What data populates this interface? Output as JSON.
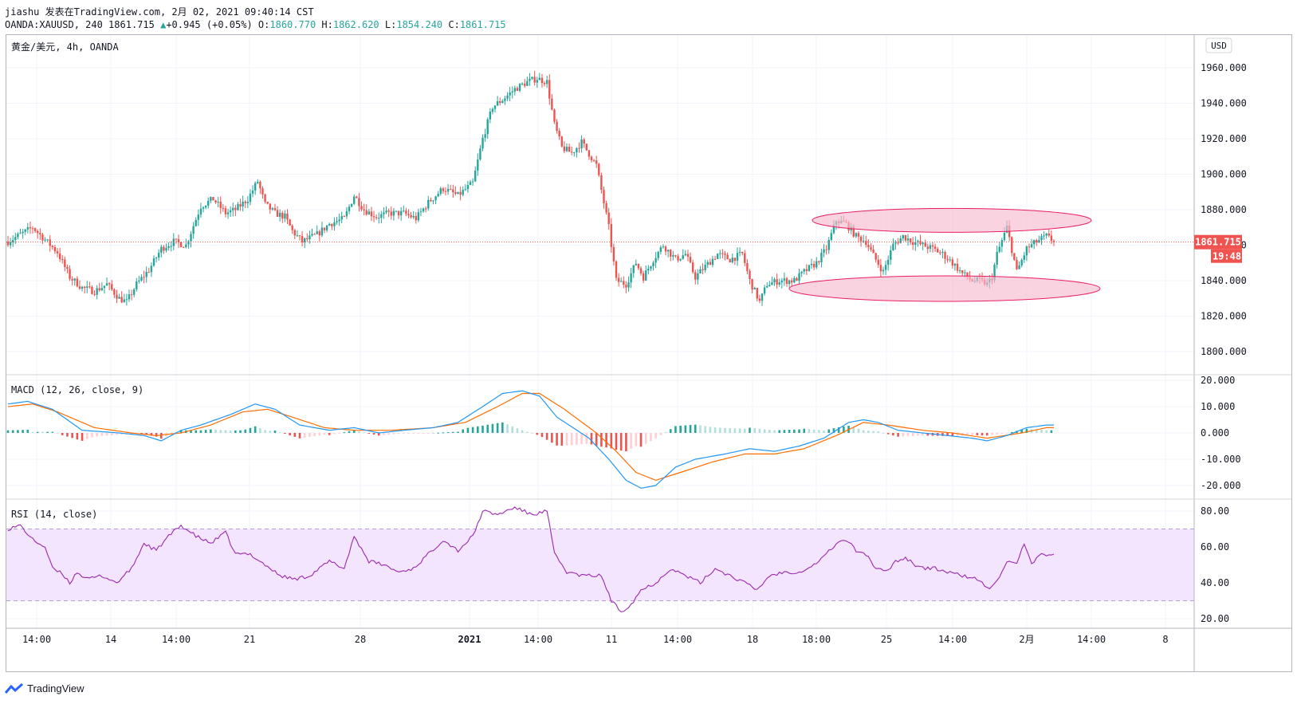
{
  "header": {
    "line1": "jiashu 发表在TradingView.com, 2月 02, 2021 09:40:14 CST",
    "symbol": "OANDA:XAUUSD, 240 1861.715",
    "change": "+0.945 (+0.05%)",
    "o_label": "O:",
    "o_val": "1860.770",
    "h_label": "H:",
    "h_val": "1862.620",
    "l_label": "L:",
    "l_val": "1854.240",
    "c_label": "C:",
    "c_val": "1861.715"
  },
  "main_pane": {
    "title": "黄金/美元, 4h, OANDA",
    "currency": "USD",
    "last_price": "1861.715",
    "countdown": "19:48"
  },
  "macd_pane": {
    "title": "MACD (12, 26, close, 9)"
  },
  "rsi_pane": {
    "title": "RSI (14, close)"
  },
  "brand": {
    "name": "TradingView"
  },
  "colors": {
    "up": "#26a69a",
    "down": "#ef5350",
    "rsi": "#9c27b0",
    "rsi_band": "#f3e5fd",
    "macd_line": "#2196f3",
    "signal_line": "#ff6d00",
    "ellipse_fill": "#f8bbd0",
    "ellipse_stroke": "#e91e63"
  },
  "chart_data": [
    {
      "type": "candlestick",
      "y_axis_ticks": [
        "1960.000",
        "1940.000",
        "1920.000",
        "1900.000",
        "1880.000",
        "1860.000",
        "1840.000",
        "1820.000",
        "1800.000"
      ],
      "ylim": [
        1795,
        1962
      ],
      "x_axis_ticks": [
        "14:00",
        "14",
        "14:00",
        "21",
        "28",
        "2021",
        "14:00",
        "11",
        "14:00",
        "18",
        "18:00",
        "25",
        "14:00",
        "2月",
        "14:00",
        "8"
      ],
      "last_close": 1861.715,
      "price_path": [
        [
          0,
          1862
        ],
        [
          10,
          1870
        ],
        [
          20,
          1856
        ],
        [
          25,
          1842
        ],
        [
          30,
          1836
        ],
        [
          35,
          1834
        ],
        [
          40,
          1838
        ],
        [
          45,
          1830
        ],
        [
          48,
          1828
        ],
        [
          52,
          1838
        ],
        [
          57,
          1846
        ],
        [
          62,
          1858
        ],
        [
          67,
          1862
        ],
        [
          72,
          1860
        ],
        [
          78,
          1882
        ],
        [
          83,
          1886
        ],
        [
          88,
          1878
        ],
        [
          92,
          1880
        ],
        [
          97,
          1886
        ],
        [
          101,
          1896
        ],
        [
          104,
          1883
        ],
        [
          108,
          1878
        ],
        [
          112,
          1876
        ],
        [
          115,
          1868
        ],
        [
          119,
          1862
        ],
        [
          125,
          1866
        ],
        [
          130,
          1872
        ],
        [
          136,
          1875
        ],
        [
          140,
          1888
        ],
        [
          144,
          1880
        ],
        [
          149,
          1876
        ],
        [
          154,
          1878
        ],
        [
          160,
          1878
        ],
        [
          165,
          1875
        ],
        [
          170,
          1884
        ],
        [
          176,
          1892
        ],
        [
          182,
          1888
        ],
        [
          188,
          1895
        ],
        [
          192,
          1920
        ],
        [
          196,
          1938
        ],
        [
          200,
          1942
        ],
        [
          205,
          1948
        ],
        [
          210,
          1952
        ],
        [
          214,
          1954
        ],
        [
          218,
          1952
        ],
        [
          221,
          1928
        ],
        [
          224,
          1915
        ],
        [
          228,
          1912
        ],
        [
          232,
          1918
        ],
        [
          238,
          1905
        ],
        [
          243,
          1870
        ],
        [
          246,
          1840
        ],
        [
          250,
          1838
        ],
        [
          254,
          1850
        ],
        [
          257,
          1842
        ],
        [
          261,
          1852
        ],
        [
          265,
          1860
        ],
        [
          270,
          1852
        ],
        [
          274,
          1855
        ],
        [
          278,
          1842
        ],
        [
          282,
          1848
        ],
        [
          287,
          1855
        ],
        [
          292,
          1852
        ],
        [
          297,
          1855
        ],
        [
          300,
          1840
        ],
        [
          304,
          1828
        ],
        [
          307,
          1838
        ],
        [
          312,
          1840
        ],
        [
          318,
          1840
        ],
        [
          322,
          1845
        ],
        [
          327,
          1850
        ],
        [
          331,
          1858
        ],
        [
          335,
          1874
        ],
        [
          339,
          1872
        ],
        [
          343,
          1865
        ],
        [
          347,
          1862
        ],
        [
          350,
          1854
        ],
        [
          354,
          1845
        ],
        [
          358,
          1860
        ],
        [
          362,
          1865
        ],
        [
          366,
          1862
        ],
        [
          370,
          1860
        ],
        [
          374,
          1858
        ],
        [
          378,
          1855
        ],
        [
          382,
          1850
        ],
        [
          386,
          1844
        ],
        [
          390,
          1840
        ],
        [
          393,
          1840
        ],
        [
          396,
          1838
        ],
        [
          398,
          1842
        ],
        [
          400,
          1855
        ],
        [
          404,
          1870
        ],
        [
          408,
          1845
        ],
        [
          412,
          1858
        ],
        [
          416,
          1862
        ],
        [
          420,
          1865
        ],
        [
          423,
          1862
        ]
      ]
    },
    {
      "type": "line",
      "name": "MACD",
      "y_axis_ticks": [
        "20.000",
        "10.000",
        "0.000",
        "-10.000",
        "-20.000"
      ],
      "ylim": [
        -26,
        25
      ],
      "macd": [
        [
          0,
          11
        ],
        [
          8,
          12
        ],
        [
          18,
          9
        ],
        [
          30,
          1
        ],
        [
          45,
          0
        ],
        [
          55,
          -1
        ],
        [
          62,
          -3
        ],
        [
          70,
          1
        ],
        [
          78,
          3
        ],
        [
          90,
          7
        ],
        [
          100,
          11
        ],
        [
          108,
          9
        ],
        [
          118,
          3
        ],
        [
          130,
          1
        ],
        [
          140,
          2
        ],
        [
          150,
          0
        ],
        [
          160,
          1
        ],
        [
          172,
          2
        ],
        [
          182,
          4
        ],
        [
          192,
          10
        ],
        [
          200,
          15
        ],
        [
          208,
          16
        ],
        [
          215,
          14
        ],
        [
          222,
          6
        ],
        [
          235,
          -2
        ],
        [
          243,
          -10
        ],
        [
          250,
          -18
        ],
        [
          256,
          -21
        ],
        [
          262,
          -20
        ],
        [
          270,
          -13
        ],
        [
          278,
          -10
        ],
        [
          290,
          -8
        ],
        [
          300,
          -6
        ],
        [
          310,
          -7
        ],
        [
          320,
          -5
        ],
        [
          330,
          -2
        ],
        [
          340,
          4
        ],
        [
          346,
          5
        ],
        [
          352,
          4
        ],
        [
          360,
          1
        ],
        [
          370,
          0
        ],
        [
          380,
          -1
        ],
        [
          390,
          -2
        ],
        [
          396,
          -3
        ],
        [
          404,
          -1
        ],
        [
          412,
          2
        ],
        [
          420,
          3
        ]
      ],
      "signal": [
        [
          0,
          10
        ],
        [
          10,
          11
        ],
        [
          20,
          8
        ],
        [
          35,
          2
        ],
        [
          50,
          0
        ],
        [
          60,
          -1
        ],
        [
          70,
          0
        ],
        [
          82,
          3
        ],
        [
          95,
          8
        ],
        [
          105,
          9
        ],
        [
          115,
          6
        ],
        [
          128,
          2
        ],
        [
          140,
          1
        ],
        [
          155,
          1
        ],
        [
          172,
          2
        ],
        [
          185,
          4
        ],
        [
          198,
          10
        ],
        [
          208,
          15
        ],
        [
          215,
          15
        ],
        [
          225,
          9
        ],
        [
          238,
          0
        ],
        [
          246,
          -7
        ],
        [
          254,
          -15
        ],
        [
          262,
          -18
        ],
        [
          272,
          -15
        ],
        [
          285,
          -11
        ],
        [
          298,
          -8
        ],
        [
          310,
          -8
        ],
        [
          322,
          -6
        ],
        [
          335,
          -1
        ],
        [
          346,
          4
        ],
        [
          356,
          3
        ],
        [
          370,
          1
        ],
        [
          382,
          0
        ],
        [
          396,
          -2
        ],
        [
          410,
          0
        ],
        [
          420,
          2
        ]
      ]
    },
    {
      "type": "line",
      "name": "RSI",
      "y_axis_ticks": [
        "80.00",
        "60.00",
        "40.00",
        "20.00"
      ],
      "ylim": [
        17,
        86
      ],
      "band": [
        30,
        70
      ],
      "rsi": [
        [
          0,
          70
        ],
        [
          5,
          72
        ],
        [
          10,
          64
        ],
        [
          15,
          60
        ],
        [
          18,
          48
        ],
        [
          22,
          45
        ],
        [
          25,
          40
        ],
        [
          28,
          46
        ],
        [
          32,
          42
        ],
        [
          38,
          44
        ],
        [
          44,
          40
        ],
        [
          50,
          48
        ],
        [
          55,
          62
        ],
        [
          60,
          58
        ],
        [
          65,
          66
        ],
        [
          70,
          72
        ],
        [
          76,
          66
        ],
        [
          82,
          62
        ],
        [
          88,
          68
        ],
        [
          92,
          56
        ],
        [
          98,
          56
        ],
        [
          104,
          50
        ],
        [
          110,
          44
        ],
        [
          116,
          42
        ],
        [
          122,
          44
        ],
        [
          130,
          52
        ],
        [
          136,
          48
        ],
        [
          140,
          66
        ],
        [
          146,
          52
        ],
        [
          152,
          50
        ],
        [
          158,
          46
        ],
        [
          164,
          48
        ],
        [
          170,
          56
        ],
        [
          176,
          64
        ],
        [
          182,
          58
        ],
        [
          188,
          66
        ],
        [
          192,
          80
        ],
        [
          198,
          78
        ],
        [
          205,
          82
        ],
        [
          212,
          78
        ],
        [
          218,
          80
        ],
        [
          221,
          56
        ],
        [
          226,
          46
        ],
        [
          232,
          44
        ],
        [
          240,
          44
        ],
        [
          244,
          30
        ],
        [
          248,
          24
        ],
        [
          252,
          28
        ],
        [
          256,
          36
        ],
        [
          262,
          40
        ],
        [
          268,
          48
        ],
        [
          274,
          44
        ],
        [
          280,
          40
        ],
        [
          286,
          48
        ],
        [
          292,
          44
        ],
        [
          298,
          40
        ],
        [
          303,
          36
        ],
        [
          308,
          44
        ],
        [
          314,
          46
        ],
        [
          320,
          46
        ],
        [
          326,
          50
        ],
        [
          331,
          56
        ],
        [
          335,
          62
        ],
        [
          339,
          64
        ],
        [
          343,
          58
        ],
        [
          347,
          56
        ],
        [
          351,
          48
        ],
        [
          355,
          46
        ],
        [
          359,
          52
        ],
        [
          363,
          54
        ],
        [
          367,
          50
        ],
        [
          371,
          48
        ],
        [
          375,
          48
        ],
        [
          380,
          46
        ],
        [
          386,
          44
        ],
        [
          392,
          42
        ],
        [
          397,
          36
        ],
        [
          401,
          44
        ],
        [
          404,
          52
        ],
        [
          408,
          50
        ],
        [
          411,
          62
        ],
        [
          414,
          50
        ],
        [
          418,
          56
        ],
        [
          423,
          56
        ]
      ]
    }
  ]
}
